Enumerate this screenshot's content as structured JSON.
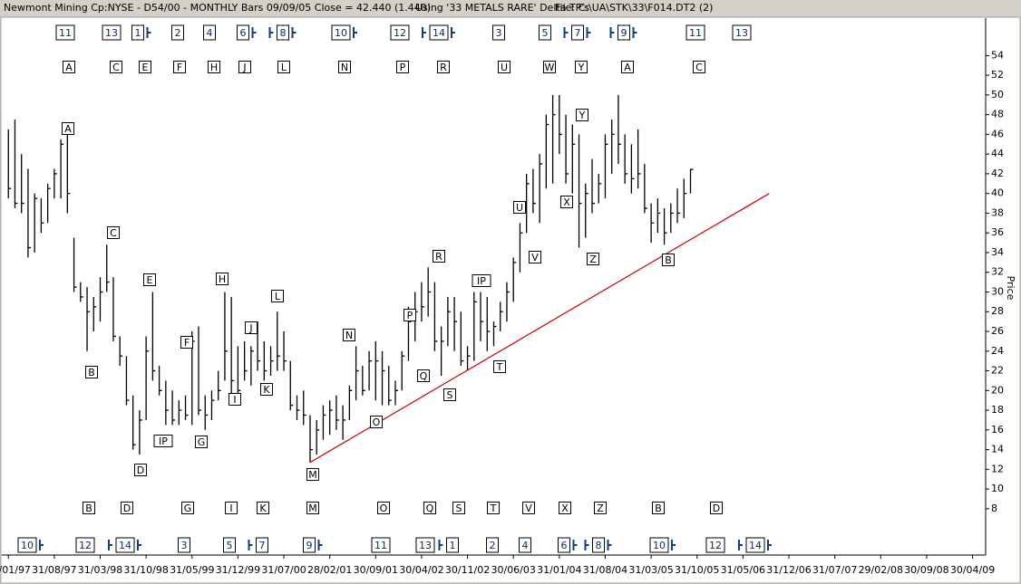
{
  "chart_data": {
    "type": "hlc",
    "title": "Newmont Mining Cp:NYSE - D54/00 - MONTHLY Bars  09/09/05 Close = 42.440 (1.440)",
    "subtitle": "Using '33 METALS RARE' Delta TP's",
    "file_label": "File: C:\\UA\\STK\\33\\F014.DT2 (2)",
    "y_label": "Price",
    "color": "#000000",
    "x": [
      "31/01/97",
      "28/02/97",
      "31/03/97",
      "30/04/97",
      "31/05/97",
      "30/06/97",
      "31/07/97",
      "31/08/97",
      "30/09/97",
      "31/10/97",
      "30/11/97",
      "31/12/97",
      "31/01/98",
      "28/02/98",
      "31/03/98",
      "30/04/98",
      "31/05/98",
      "30/06/98",
      "31/07/98",
      "31/08/98",
      "30/09/98",
      "31/10/98",
      "30/11/98",
      "31/12/98",
      "31/01/99",
      "28/02/99",
      "31/03/99",
      "30/04/99",
      "31/05/99",
      "30/06/99",
      "31/07/99",
      "31/08/99",
      "30/09/99",
      "31/10/99",
      "30/11/99",
      "31/12/99",
      "31/01/00",
      "29/02/00",
      "31/03/00",
      "30/04/00",
      "31/05/00",
      "30/06/00",
      "31/07/00",
      "31/08/00",
      "30/09/00",
      "31/10/00",
      "30/11/00",
      "31/12/00",
      "31/01/01",
      "28/02/01",
      "31/03/01",
      "30/04/01",
      "31/05/01",
      "30/06/01",
      "31/07/01",
      "31/08/01",
      "30/09/01",
      "31/10/01",
      "30/11/01",
      "31/12/01",
      "31/01/02",
      "28/02/02",
      "31/03/02",
      "30/04/02",
      "31/05/02",
      "30/06/02",
      "31/07/02",
      "31/08/02",
      "30/09/02",
      "31/10/02",
      "30/11/02",
      "31/12/02",
      "31/01/03",
      "28/02/03",
      "31/03/03",
      "30/04/03",
      "31/05/03",
      "30/06/03",
      "31/07/03",
      "31/08/03",
      "30/09/03",
      "31/10/03",
      "30/11/03",
      "31/12/03",
      "31/01/04",
      "29/02/04",
      "31/03/04",
      "30/04/04",
      "31/05/04",
      "30/06/04",
      "31/07/04",
      "31/08/04",
      "30/09/04",
      "31/10/04",
      "30/11/04",
      "31/12/04",
      "31/01/05",
      "28/02/05",
      "31/03/05",
      "30/04/05",
      "31/05/05",
      "30/06/05",
      "31/07/05",
      "31/08/05",
      "30/09/05"
    ],
    "high": [
      46.5,
      47.5,
      44,
      42.5,
      40,
      39.5,
      41,
      42.5,
      45.5,
      46,
      35.5,
      31,
      30.5,
      29.5,
      31.5,
      34.8,
      31.5,
      25.5,
      23.5,
      19.5,
      18,
      25.5,
      30,
      22.5,
      21,
      20,
      19,
      19.5,
      26,
      26.5,
      19.5,
      20,
      22,
      30,
      29.5,
      24.5,
      25,
      24.5,
      27,
      25,
      24.5,
      28,
      26,
      23,
      19.5,
      20,
      17.5,
      17,
      18.5,
      19,
      19.5,
      18.5,
      20.5,
      24.5,
      22.5,
      24,
      25,
      24,
      22.5,
      21,
      24,
      28.5,
      30,
      31,
      32.5,
      31,
      26.5,
      29.5,
      29.5,
      28,
      24.5,
      30,
      30,
      29.5,
      27,
      29,
      31,
      33.5,
      37,
      42,
      42.5,
      44,
      48,
      50,
      50,
      48,
      47,
      46,
      41,
      43.5,
      42,
      46,
      47.5,
      50,
      46,
      45,
      46.5,
      43,
      39,
      39.5,
      38.5,
      39,
      40.5,
      41.5,
      42.5
    ],
    "low": [
      39.5,
      38.5,
      38,
      33.5,
      34,
      36,
      37,
      39.5,
      39.5,
      38,
      30,
      29,
      24,
      26,
      27,
      30,
      25,
      22.5,
      18.5,
      14,
      13.5,
      17,
      21,
      19.5,
      16.5,
      16.5,
      16.5,
      17,
      16.5,
      17.5,
      16,
      17,
      19,
      21,
      19.5,
      19,
      21,
      20.5,
      22,
      21,
      21.5,
      22,
      22,
      18,
      17,
      16.5,
      12.7,
      13.5,
      15,
      15.5,
      16,
      15,
      17,
      19,
      19.5,
      20,
      19,
      18.5,
      18.5,
      18.5,
      20,
      23,
      25,
      27,
      27.5,
      24,
      21.5,
      24.5,
      24,
      22.5,
      22,
      23,
      25,
      24,
      24.5,
      26,
      27,
      29,
      32,
      36,
      38,
      37,
      40.5,
      41,
      44,
      41,
      40,
      34.5,
      35.5,
      38,
      39,
      39.5,
      42,
      43,
      41,
      40,
      40.5,
      38,
      35,
      36,
      34.8,
      36,
      37,
      37.5,
      40
    ],
    "close": [
      40.5,
      39,
      39,
      34.5,
      39.5,
      37,
      40.5,
      42,
      45,
      40,
      30.5,
      29.5,
      28,
      28.5,
      30,
      31,
      25.5,
      23.5,
      19,
      14.5,
      17,
      24,
      22,
      20,
      18,
      17,
      18,
      17.5,
      25,
      18,
      17.5,
      19,
      20,
      24,
      21,
      20,
      22,
      24,
      23,
      22,
      23,
      23.5,
      23,
      18.5,
      18,
      17.5,
      14,
      16,
      17.5,
      18,
      17,
      17,
      20,
      22,
      20,
      23,
      23,
      22,
      19,
      20,
      23.5,
      27,
      28,
      28.5,
      30,
      25,
      25,
      28,
      27,
      23,
      23.5,
      29,
      27,
      26,
      26.5,
      28,
      30,
      33,
      36,
      41,
      39,
      43,
      47,
      48,
      46,
      42,
      45,
      39,
      40,
      39,
      41,
      45,
      46,
      45,
      42,
      41.5,
      42,
      38.5,
      37,
      38,
      36,
      38,
      38,
      40,
      42.44
    ],
    "xlim": [
      "31/12/96",
      "30/06/09"
    ],
    "xticks": [
      "31/01/97",
      "31/08/97",
      "31/03/98",
      "31/10/98",
      "31/05/99",
      "31/12/99",
      "31/07/00",
      "28/02/01",
      "30/09/01",
      "30/04/02",
      "30/11/02",
      "30/06/03",
      "31/01/04",
      "31/08/04",
      "31/03/05",
      "31/10/05",
      "31/05/06",
      "31/12/06",
      "31/07/07",
      "29/02/08",
      "30/09/08",
      "30/04/09"
    ],
    "ylim": [
      3.3,
      57.8
    ],
    "yticks": [
      8,
      10,
      12,
      14,
      16,
      18,
      20,
      22,
      24,
      26,
      28,
      30,
      32,
      34,
      36,
      38,
      40,
      42,
      44,
      46,
      48,
      50,
      52,
      54
    ],
    "trendline": {
      "x": [
        "30/11/00",
        "30/09/06"
      ],
      "values": [
        12.7,
        40
      ],
      "color": "#cc0000"
    },
    "top_cycles": [
      "11",
      "13",
      "1",
      "2",
      "4",
      "6",
      "8",
      "10",
      "12",
      "14",
      "3",
      "5",
      "7",
      "9",
      "11",
      "13"
    ],
    "top_letters": [
      "A",
      "C",
      "E",
      "F",
      "H",
      "J",
      "L",
      "N",
      "P",
      "R",
      "U",
      "W",
      "Y",
      "A",
      "C"
    ],
    "bottom_letters": [
      "B",
      "D",
      "G",
      "I",
      "K",
      "M",
      "O",
      "Q",
      "S",
      "T",
      "V",
      "X",
      "Z",
      "B",
      "D"
    ],
    "bottom_cycles": [
      "10",
      "12",
      "14",
      "3",
      "5",
      "7",
      "9",
      "11",
      "13",
      "1",
      "2",
      "4",
      "6",
      "8",
      "10",
      "12",
      "14"
    ],
    "chart_labels": [
      "A",
      "C",
      "B",
      "D",
      "E",
      "IP",
      "F",
      "G",
      "H",
      "I",
      "J",
      "K",
      "L",
      "M",
      "N",
      "O",
      "P",
      "Q",
      "R",
      "S",
      "IP",
      "T",
      "U",
      "V",
      "X",
      "Y",
      "Z",
      "B"
    ]
  }
}
